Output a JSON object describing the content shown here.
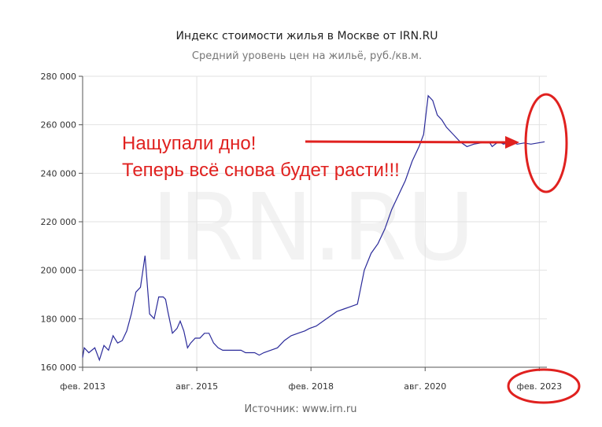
{
  "chart_data": {
    "type": "line",
    "title": "Индекс стоимости жилья в Москве от IRN.RU",
    "subtitle": "Средний уровень цен на жильё, руб./кв.м.",
    "source": "Источник: www.irn.ru",
    "watermark": "IRN.RU",
    "ylim": [
      160000,
      280000
    ],
    "y_ticks": [
      {
        "value": 160000,
        "label": "160 000"
      },
      {
        "value": 180000,
        "label": "180 000"
      },
      {
        "value": 200000,
        "label": "200 000"
      },
      {
        "value": 220000,
        "label": "220 000"
      },
      {
        "value": 240000,
        "label": "240 000"
      },
      {
        "value": 260000,
        "label": "260 000"
      },
      {
        "value": 280000,
        "label": "280 000"
      }
    ],
    "xlim": [
      2013.0833,
      2023.25
    ],
    "x_ticks": [
      {
        "value": 2013.0833,
        "label": "фев. 2013"
      },
      {
        "value": 2015.5833,
        "label": "авг. 2015"
      },
      {
        "value": 2018.0833,
        "label": "фев. 2018"
      },
      {
        "value": 2020.5833,
        "label": "авг. 2020"
      },
      {
        "value": 2023.0833,
        "label": "фев. 2023"
      }
    ],
    "grid": true,
    "series_color": "#2b2b9a",
    "series": [
      {
        "x": [
          2013.0,
          2013.12,
          2013.22,
          2013.35,
          2013.45,
          2013.55,
          2013.65,
          2013.75,
          2013.85,
          2013.95,
          2014.05,
          2014.15,
          2014.25,
          2014.35,
          2014.45,
          2014.55,
          2014.65,
          2014.75,
          2014.85,
          2014.9,
          2014.95,
          2015.05,
          2015.15,
          2015.22,
          2015.3,
          2015.38,
          2015.45,
          2015.55,
          2015.65,
          2015.75,
          2015.85,
          2015.95,
          2016.05,
          2016.15,
          2016.25,
          2016.35,
          2016.45,
          2016.55,
          2016.65,
          2016.75,
          2016.85,
          2016.95,
          2017.05,
          2017.2,
          2017.35,
          2017.5,
          2017.65,
          2017.8,
          2017.95,
          2018.05,
          2018.2,
          2018.35,
          2018.5,
          2018.65,
          2018.8,
          2018.95,
          2019.1,
          2019.25,
          2019.4,
          2019.55,
          2019.7,
          2019.85,
          2020.0,
          2020.15,
          2020.3,
          2020.45,
          2020.55,
          2020.65,
          2020.75,
          2020.85,
          2020.95,
          2021.05,
          2021.2,
          2021.35,
          2021.5,
          2021.65,
          2021.8,
          2021.9,
          2022.0,
          2022.05,
          2022.12,
          2022.2,
          2022.3,
          2022.45,
          2022.6,
          2022.75,
          2022.9,
          2023.05,
          2023.2
        ],
        "values": [
          164000,
          168000,
          166000,
          168000,
          163000,
          169000,
          167000,
          173000,
          170000,
          171000,
          175000,
          182000,
          191000,
          193000,
          206000,
          182000,
          180000,
          189000,
          189000,
          188000,
          183000,
          174000,
          176000,
          179000,
          175000,
          168000,
          170000,
          172000,
          172000,
          174000,
          174000,
          170000,
          168000,
          167000,
          167000,
          167000,
          167000,
          167000,
          166000,
          166000,
          166000,
          165000,
          166000,
          167000,
          168000,
          171000,
          173000,
          174000,
          175000,
          176000,
          177000,
          179000,
          181000,
          183000,
          184000,
          185000,
          186000,
          200000,
          207000,
          211000,
          217000,
          225000,
          231000,
          237000,
          245000,
          251000,
          256000,
          272000,
          270000,
          264000,
          262000,
          259000,
          256000,
          253000,
          251000,
          252000,
          252500,
          253000,
          252500,
          251000,
          252000,
          253000,
          252000,
          253000,
          252000,
          252500,
          252000,
          252500,
          253000
        ]
      }
    ],
    "annotations": [
      {
        "text": "Нащупали дно!"
      },
      {
        "text": "Теперь всё снова будет расти!!!"
      }
    ]
  }
}
